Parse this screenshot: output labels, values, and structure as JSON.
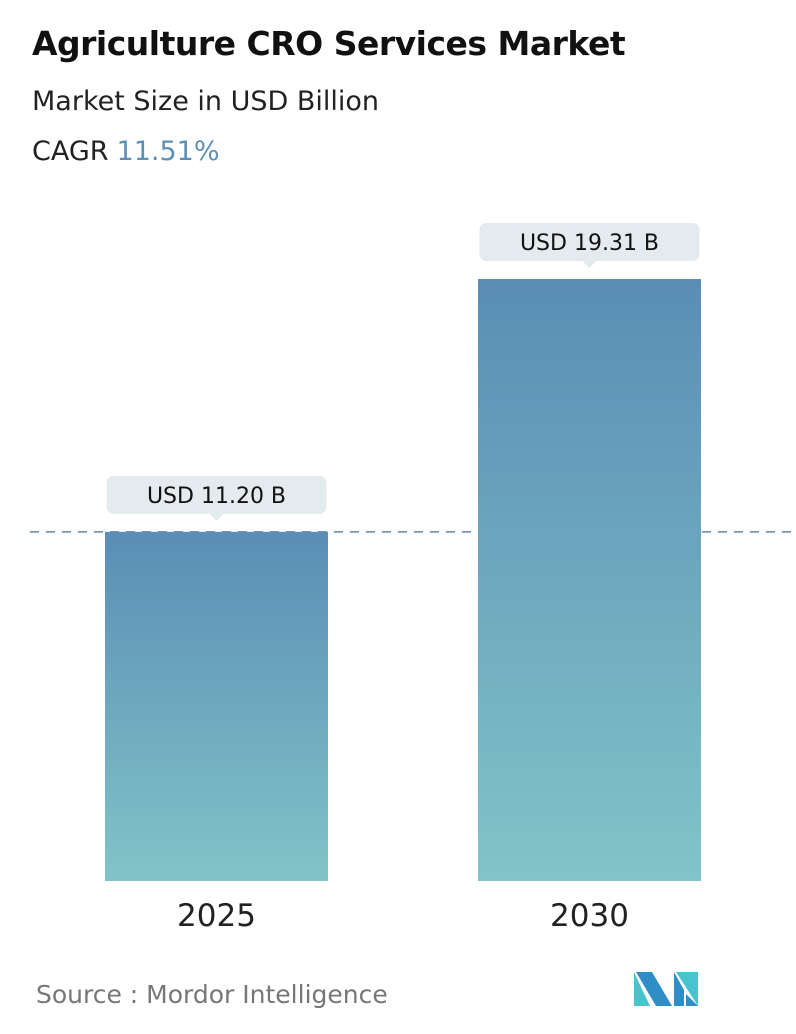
{
  "header": {
    "title": "Agriculture CRO Services Market",
    "subtitle": "Market Size in USD Billion",
    "cagr_label": "CAGR",
    "cagr_value": "11.51%"
  },
  "chart_data": {
    "type": "bar",
    "categories": [
      "2025",
      "2030"
    ],
    "values": [
      11.2,
      19.31
    ],
    "data_labels": [
      "USD 11.20 B",
      "USD 19.31 B"
    ],
    "ylim": [
      0,
      19.31
    ],
    "grid": false,
    "reference_line": {
      "value": 11.2,
      "style": "dashed"
    },
    "colors": {
      "bar_top": "#5b8db5",
      "bar_bottom": "#80c4c8",
      "callout": "#e3ebee",
      "dash": "#5b87a8"
    }
  },
  "footer": {
    "source": "Source :  Mordor Intelligence"
  },
  "logo": {
    "icon": "mordor-intelligence-logo",
    "colors": [
      "#2f8ec5",
      "#47c4cc"
    ]
  }
}
